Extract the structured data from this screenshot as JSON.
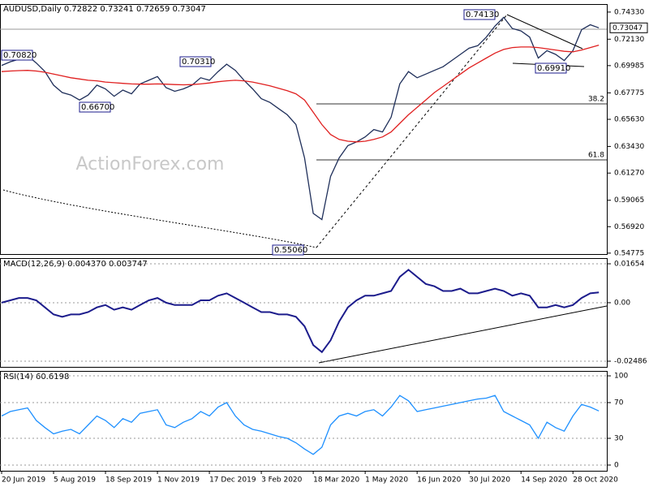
{
  "chart_data": [
    {
      "type": "line",
      "title": "AUDUSD,Daily  0.72822 0.73241 0.72659 0.73047",
      "last_label": "0.73047",
      "watermark": "ActionForex.com",
      "annotations": [
        "0.70820",
        "0.66700",
        "0.70310",
        "0.55060",
        "0.74130",
        "0.69910"
      ],
      "level_labels": [
        "38.2",
        "61.8"
      ],
      "ylim": [
        0.547,
        0.7498
      ],
      "yticks": [
        {
          "value": 0.7433,
          "label": "0.74330"
        },
        {
          "value": 0.7213,
          "label": "0.72130"
        },
        {
          "value": 0.69985,
          "label": "0.69985"
        },
        {
          "value": 0.67775,
          "label": "0.67775"
        },
        {
          "value": 0.6563,
          "label": "0.65630"
        },
        {
          "value": 0.6343,
          "label": "0.63430"
        },
        {
          "value": 0.6127,
          "label": "0.61270"
        },
        {
          "value": 0.59065,
          "label": "0.59065"
        },
        {
          "value": 0.5692,
          "label": "0.56920"
        },
        {
          "value": 0.54775,
          "label": "0.54775"
        }
      ],
      "series": [
        {
          "color": "#1f2f5a",
          "values": [
            0.7,
            0.703,
            0.705,
            0.708,
            0.702,
            0.695,
            0.684,
            0.678,
            0.676,
            0.672,
            0.676,
            0.684,
            0.681,
            0.675,
            0.68,
            0.677,
            0.685,
            0.688,
            0.691,
            0.682,
            0.679,
            0.681,
            0.684,
            0.69,
            0.688,
            0.695,
            0.701,
            0.696,
            0.688,
            0.681,
            0.673,
            0.67,
            0.665,
            0.66,
            0.652,
            0.625,
            0.58,
            0.575,
            0.61,
            0.625,
            0.635,
            0.638,
            0.642,
            0.648,
            0.646,
            0.658,
            0.685,
            0.695,
            0.69,
            0.693,
            0.696,
            0.699,
            0.704,
            0.709,
            0.714,
            0.716,
            0.723,
            0.732,
            0.739,
            0.73,
            0.728,
            0.723,
            0.706,
            0.712,
            0.709,
            0.704,
            0.712,
            0.729,
            0.733,
            0.7305
          ]
        },
        {
          "color": "#e02020",
          "values": [
            0.695,
            0.6955,
            0.6958,
            0.696,
            0.6955,
            0.6945,
            0.693,
            0.6915,
            0.69,
            0.689,
            0.688,
            0.6875,
            0.6865,
            0.686,
            0.6855,
            0.685,
            0.6848,
            0.6848,
            0.685,
            0.6848,
            0.6845,
            0.6843,
            0.6845,
            0.685,
            0.6858,
            0.6868,
            0.6875,
            0.688,
            0.6875,
            0.6865,
            0.685,
            0.6835,
            0.6815,
            0.6795,
            0.677,
            0.672,
            0.662,
            0.652,
            0.644,
            0.64,
            0.6385,
            0.638,
            0.6385,
            0.64,
            0.642,
            0.646,
            0.653,
            0.66,
            0.666,
            0.672,
            0.678,
            0.683,
            0.688,
            0.693,
            0.698,
            0.702,
            0.706,
            0.71,
            0.713,
            0.7145,
            0.715,
            0.715,
            0.7145,
            0.7135,
            0.7125,
            0.7115,
            0.711,
            0.7125,
            0.7145,
            0.7165
          ]
        }
      ]
    },
    {
      "type": "line",
      "title": "MACD(12,26,9) 0.004370 0.003747",
      "ylim": [
        -0.02728,
        0.01896
      ],
      "yticks": [
        0.01654,
        {
          "value": 0,
          "label": "0.00"
        },
        -0.02486
      ],
      "series": [
        {
          "color": "#1c1c8c",
          "values": [
            0.0,
            0.001,
            0.002,
            0.002,
            0.001,
            -0.002,
            -0.005,
            -0.006,
            -0.005,
            -0.005,
            -0.004,
            -0.002,
            -0.001,
            -0.003,
            -0.002,
            -0.003,
            -0.001,
            0.001,
            0.002,
            0.0,
            -0.001,
            -0.001,
            -0.001,
            0.001,
            0.001,
            0.003,
            0.004,
            0.002,
            0.0,
            -0.002,
            -0.004,
            -0.004,
            -0.005,
            -0.005,
            -0.006,
            -0.01,
            -0.018,
            -0.021,
            -0.016,
            -0.008,
            -0.002,
            0.001,
            0.003,
            0.003,
            0.004,
            0.005,
            0.011,
            0.014,
            0.011,
            0.008,
            0.007,
            0.005,
            0.005,
            0.006,
            0.004,
            0.004,
            0.005,
            0.006,
            0.005,
            0.003,
            0.004,
            0.003,
            -0.002,
            -0.002,
            -0.001,
            -0.002,
            -0.001,
            0.002,
            0.004,
            0.00437
          ]
        }
      ]
    },
    {
      "type": "line",
      "title": "RSI(14) 60.6198",
      "ylim": [
        -6.4,
        105.5
      ],
      "yticks": [
        100,
        70,
        30,
        0
      ],
      "categories": [
        "20 Jun 2019",
        null,
        null,
        null,
        null,
        null,
        "5 Aug 2019",
        null,
        null,
        null,
        null,
        null,
        "18 Sep 2019",
        null,
        null,
        null,
        null,
        null,
        "1 Nov 2019",
        null,
        null,
        null,
        null,
        null,
        "17 Dec 2019",
        null,
        null,
        null,
        null,
        null,
        "3 Feb 2020",
        null,
        null,
        null,
        null,
        null,
        "18 Mar 2020",
        null,
        null,
        null,
        null,
        null,
        "1 May 2020",
        null,
        null,
        null,
        null,
        null,
        "16 Jun 2020",
        null,
        null,
        null,
        null,
        null,
        "30 Jul 2020",
        null,
        null,
        null,
        null,
        null,
        "14 Sep 2020",
        null,
        null,
        null,
        null,
        null,
        "28 Oct 2020",
        null,
        null,
        null
      ],
      "series": [
        {
          "color": "#1e90ff",
          "values": [
            55,
            60,
            62,
            64,
            50,
            42,
            35,
            38,
            40,
            35,
            45,
            55,
            50,
            42,
            52,
            48,
            58,
            60,
            62,
            45,
            42,
            48,
            52,
            60,
            55,
            65,
            70,
            55,
            45,
            40,
            38,
            35,
            32,
            30,
            25,
            18,
            12,
            20,
            45,
            55,
            58,
            55,
            60,
            62,
            55,
            65,
            78,
            72,
            60,
            62,
            64,
            66,
            68,
            70,
            72,
            74,
            75,
            78,
            60,
            55,
            50,
            45,
            30,
            48,
            42,
            38,
            55,
            68,
            65,
            60.6198
          ]
        }
      ]
    }
  ]
}
